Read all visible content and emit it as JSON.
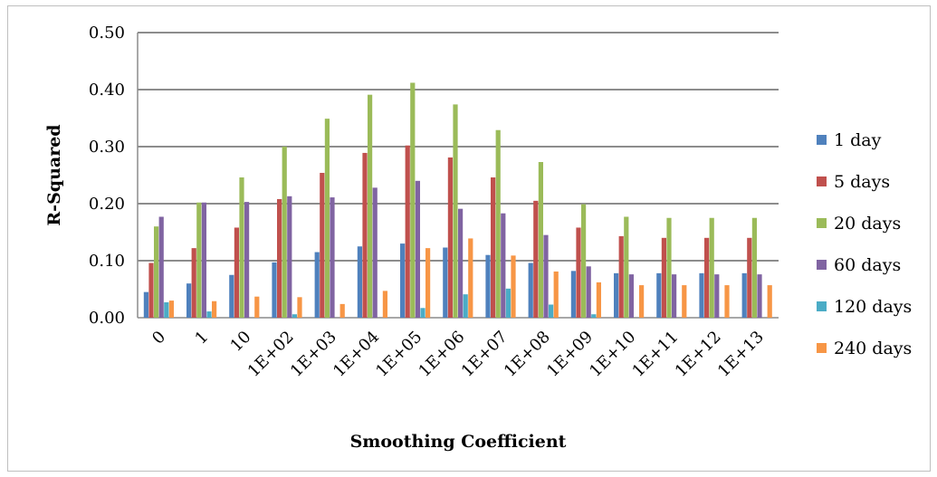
{
  "chart_data": {
    "type": "bar",
    "title": "",
    "xlabel": "Smoothing Coefficient",
    "ylabel": "R-Squared",
    "ylim": [
      0,
      0.5
    ],
    "yticks": [
      "0.00",
      "0.10",
      "0.20",
      "0.30",
      "0.40",
      "0.50"
    ],
    "ytick_values": [
      0,
      0.1,
      0.2,
      0.3,
      0.4,
      0.5
    ],
    "grid": true,
    "legend_position": "right",
    "categories": [
      "0",
      "1",
      "10",
      "1E+02",
      "1E+03",
      "1E+04",
      "1E+05",
      "1E+06",
      "1E+07",
      "1E+08",
      "1E+09",
      "1E+10",
      "1E+11",
      "1E+12",
      "1E+13"
    ],
    "series": [
      {
        "name": "1 day",
        "color": "#4f81bd",
        "values": [
          0.045,
          0.06,
          0.075,
          0.097,
          0.115,
          0.125,
          0.13,
          0.123,
          0.11,
          0.096,
          0.082,
          0.078,
          0.078,
          0.078,
          0.078
        ]
      },
      {
        "name": "5 days",
        "color": "#c0504d",
        "values": [
          0.096,
          0.122,
          0.158,
          0.208,
          0.254,
          0.289,
          0.302,
          0.281,
          0.246,
          0.205,
          0.158,
          0.143,
          0.14,
          0.14,
          0.14
        ]
      },
      {
        "name": "20 days",
        "color": "#9bbb59",
        "values": [
          0.16,
          0.202,
          0.246,
          0.3,
          0.349,
          0.391,
          0.412,
          0.374,
          0.329,
          0.273,
          0.199,
          0.177,
          0.175,
          0.175,
          0.175
        ]
      },
      {
        "name": "60 days",
        "color": "#8064a2",
        "values": [
          0.177,
          0.202,
          0.203,
          0.213,
          0.211,
          0.228,
          0.24,
          0.191,
          0.183,
          0.145,
          0.09,
          0.076,
          0.076,
          0.076,
          0.076
        ]
      },
      {
        "name": "120 days",
        "color": "#4bacc6",
        "values": [
          0.027,
          0.011,
          0.0,
          0.006,
          0.0,
          0.0,
          0.017,
          0.041,
          0.051,
          0.023,
          0.006,
          0.0,
          0.0,
          0.0,
          0.0
        ]
      },
      {
        "name": "240 days",
        "color": "#f79646",
        "values": [
          0.03,
          0.029,
          0.037,
          0.036,
          0.024,
          0.047,
          0.122,
          0.139,
          0.109,
          0.081,
          0.062,
          0.057,
          0.057,
          0.057,
          0.057
        ]
      }
    ]
  }
}
